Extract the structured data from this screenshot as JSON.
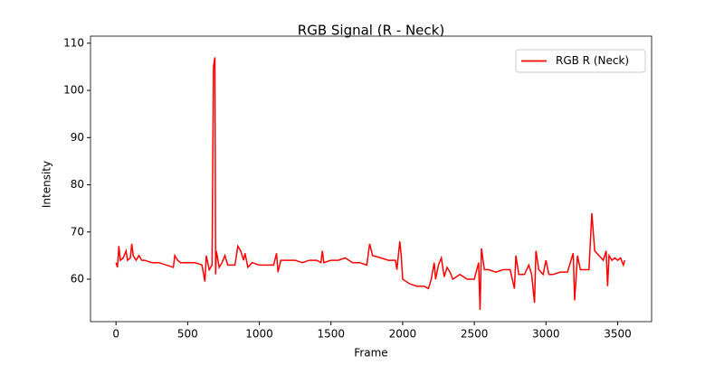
{
  "chart_data": {
    "type": "line",
    "title": "RGB Signal (R - Neck)",
    "x_label": "Frame",
    "y_label": "Intensity",
    "x": [
      0,
      10,
      20,
      30,
      50,
      70,
      80,
      100,
      110,
      120,
      140,
      160,
      180,
      200,
      250,
      300,
      350,
      400,
      410,
      430,
      450,
      500,
      550,
      600,
      620,
      630,
      650,
      670,
      680,
      690,
      695,
      700,
      720,
      740,
      760,
      780,
      800,
      830,
      850,
      870,
      890,
      900,
      920,
      950,
      1000,
      1050,
      1100,
      1120,
      1130,
      1150,
      1200,
      1250,
      1300,
      1350,
      1400,
      1430,
      1440,
      1450,
      1500,
      1550,
      1600,
      1650,
      1700,
      1750,
      1770,
      1790,
      1850,
      1900,
      1950,
      1960,
      1980,
      1990,
      2000,
      2050,
      2100,
      2150,
      2180,
      2200,
      2220,
      2230,
      2250,
      2270,
      2290,
      2310,
      2330,
      2350,
      2400,
      2450,
      2500,
      2530,
      2540,
      2550,
      2570,
      2600,
      2650,
      2700,
      2750,
      2780,
      2790,
      2810,
      2850,
      2880,
      2900,
      2920,
      2930,
      2950,
      2980,
      3000,
      3020,
      3050,
      3100,
      3150,
      3190,
      3200,
      3220,
      3240,
      3280,
      3300,
      3320,
      3340,
      3370,
      3400,
      3420,
      3430,
      3440,
      3460,
      3480,
      3500,
      3520,
      3540,
      3550
    ],
    "series": [
      {
        "name": "RGB R (Neck)",
        "color": "#ff0000",
        "values": [
          63.5,
          62.5,
          67,
          64,
          64.5,
          66,
          64,
          64.5,
          67.5,
          65,
          64,
          65,
          64,
          64,
          63.5,
          63.5,
          63,
          62.5,
          65,
          64,
          63.5,
          63.5,
          63.5,
          63,
          59.5,
          65,
          62,
          63,
          105,
          107,
          61,
          66,
          62.5,
          63.5,
          65,
          63,
          63,
          63,
          67,
          66,
          64,
          65.5,
          62.5,
          63.5,
          63,
          63,
          63,
          65.5,
          61.5,
          64,
          64,
          64,
          63.5,
          64,
          64,
          63.5,
          66,
          63.5,
          64,
          64,
          64.5,
          63.5,
          63.5,
          63,
          67.5,
          65,
          64.5,
          64,
          64,
          62,
          68,
          65,
          60,
          59,
          58.5,
          58.5,
          58,
          60,
          63.5,
          60,
          63,
          64.5,
          60.5,
          62.5,
          61.5,
          60,
          61,
          60,
          60,
          63.5,
          53.5,
          66.5,
          62,
          62,
          61.5,
          62,
          62,
          58,
          65,
          61,
          61,
          63,
          61,
          55,
          66,
          62,
          61,
          64,
          61,
          61,
          61.5,
          61.5,
          65.5,
          55.5,
          65,
          62,
          62,
          62,
          74,
          66,
          65,
          64,
          66,
          58.5,
          65,
          64,
          64.5,
          64,
          64.5,
          63,
          64
        ]
      }
    ],
    "xlim": [
      -178,
      3737
    ],
    "ylim": [
      51.0,
      111.5
    ],
    "xticks": [
      0,
      500,
      1000,
      1500,
      2000,
      2500,
      3000,
      3500
    ],
    "yticks": [
      60,
      70,
      80,
      90,
      100,
      110
    ],
    "legend": "upper right"
  }
}
